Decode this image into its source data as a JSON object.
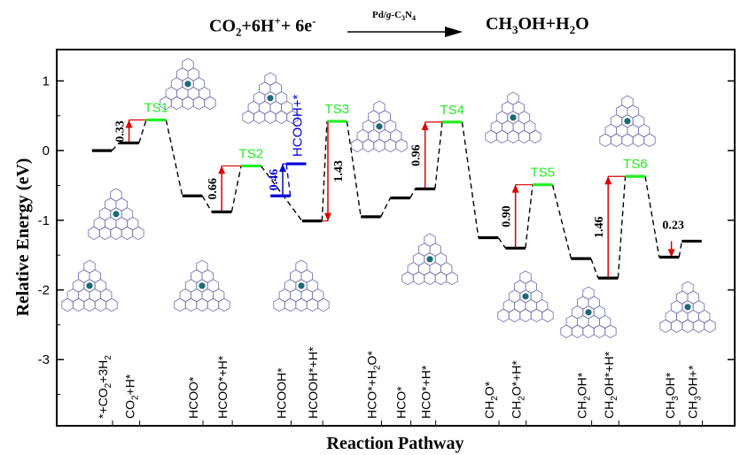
{
  "reaction": {
    "left": "CO2+6H⁺+ 6e⁻",
    "left_parts": [
      "CO",
      "2",
      "+6H",
      "+",
      "+ 6e",
      "-"
    ],
    "catalyst_parts": [
      "Pd/",
      "g",
      "-C",
      "3",
      "N",
      "4"
    ],
    "right_parts": [
      "CH",
      "3",
      "OH+H",
      "2",
      "O"
    ]
  },
  "chart_data": {
    "type": "line",
    "chart_kind": "energy profile diagram",
    "xlabel": "Reaction Pathway",
    "ylabel": "Relative Energy (eV)",
    "ylim": [
      -3.95,
      1.45
    ],
    "yticks": [
      -3,
      -2,
      -1,
      0,
      1
    ],
    "ytick_labels": [
      "-3",
      "-2",
      "-1",
      "0",
      "1"
    ],
    "grid": false,
    "colors": {
      "level": "#000000",
      "ts": "#22ee22",
      "barrier": "#dd0000",
      "alt": "#0000dd",
      "dash": "#000000",
      "structure": "#7a7ab8"
    },
    "categories": [
      {
        "sub_parts": [
          "*+CO",
          "2",
          "+3H",
          "2"
        ]
      },
      {
        "sub_parts": [
          "CO",
          "2",
          "+H*"
        ]
      },
      {
        "sub_parts": [
          "HCOO*"
        ]
      },
      {
        "sub_parts": [
          "HCOO*+H*"
        ]
      },
      {
        "sub_parts": [
          "HCOOH*"
        ]
      },
      {
        "sub_parts": [
          "HCOOH*+H*"
        ]
      },
      {
        "sub_parts": [
          "HCO*+H",
          "2",
          "O*"
        ]
      },
      {
        "sub_parts": [
          "HCO*"
        ]
      },
      {
        "sub_parts": [
          "HCO*+H*"
        ]
      },
      {
        "sub_parts": [
          "CH",
          "2",
          "O*"
        ]
      },
      {
        "sub_parts": [
          "CH",
          "2",
          "O*+H*"
        ]
      },
      {
        "sub_parts": [
          "CH",
          "2",
          "OH*"
        ]
      },
      {
        "sub_parts": [
          "CH",
          "2",
          "OH*+H*"
        ]
      },
      {
        "sub_parts": [
          "CH",
          "3",
          "OH*"
        ]
      },
      {
        "sub_parts": [
          "CH",
          "3",
          "OH+*"
        ]
      }
    ],
    "series": [
      {
        "name": "main pathway",
        "levels": [
          {
            "id": "L0",
            "x": 1.0,
            "energy": 0.0,
            "kind": "intermediate"
          },
          {
            "id": "L1",
            "x": 1.6,
            "energy": 0.11,
            "kind": "intermediate"
          },
          {
            "id": "TS1",
            "x": 2.2,
            "energy": 0.44,
            "kind": "ts",
            "label": "TS1"
          },
          {
            "id": "L2",
            "x": 3.0,
            "energy": -0.65,
            "kind": "intermediate"
          },
          {
            "id": "L3",
            "x": 3.65,
            "energy": -0.88,
            "kind": "intermediate"
          },
          {
            "id": "TS2",
            "x": 4.3,
            "energy": -0.22,
            "kind": "ts",
            "label": "TS2"
          },
          {
            "id": "L5",
            "x": 5.65,
            "energy": -1.01,
            "kind": "intermediate"
          },
          {
            "id": "TS3",
            "x": 6.2,
            "energy": 0.42,
            "kind": "ts",
            "label": "TS3"
          },
          {
            "id": "L6",
            "x": 6.95,
            "energy": -0.95,
            "kind": "intermediate"
          },
          {
            "id": "L7",
            "x": 7.6,
            "energy": -0.68,
            "kind": "intermediate"
          },
          {
            "id": "L8",
            "x": 8.15,
            "energy": -0.55,
            "kind": "intermediate"
          },
          {
            "id": "TS4",
            "x": 8.75,
            "energy": 0.41,
            "kind": "ts",
            "label": "TS4"
          },
          {
            "id": "L9",
            "x": 9.55,
            "energy": -1.25,
            "kind": "intermediate"
          },
          {
            "id": "L10",
            "x": 10.15,
            "energy": -1.4,
            "kind": "intermediate"
          },
          {
            "id": "TS5",
            "x": 10.75,
            "energy": -0.49,
            "kind": "ts",
            "label": "TS5"
          },
          {
            "id": "L11",
            "x": 11.6,
            "energy": -1.55,
            "kind": "intermediate"
          },
          {
            "id": "L12",
            "x": 12.2,
            "energy": -1.83,
            "kind": "intermediate"
          },
          {
            "id": "TS6",
            "x": 12.8,
            "energy": -0.37,
            "kind": "ts",
            "label": "TS6"
          },
          {
            "id": "L13",
            "x": 13.55,
            "energy": -1.53,
            "kind": "intermediate"
          },
          {
            "id": "L14",
            "x": 14.05,
            "energy": -1.3,
            "kind": "intermediate"
          }
        ],
        "connections": [
          [
            "L0",
            "L1"
          ],
          [
            "L1",
            "TS1"
          ],
          [
            "TS1",
            "L2"
          ],
          [
            "L2",
            "L3"
          ],
          [
            "L3",
            "TS2"
          ],
          [
            "TS2",
            "L5"
          ],
          [
            "L5",
            "TS3"
          ],
          [
            "TS3",
            "L6"
          ],
          [
            "L6",
            "L7"
          ],
          [
            "L7",
            "L8"
          ],
          [
            "L8",
            "TS4"
          ],
          [
            "TS4",
            "L9"
          ],
          [
            "L9",
            "L10"
          ],
          [
            "L10",
            "TS5"
          ],
          [
            "TS5",
            "L11"
          ],
          [
            "L11",
            "L12"
          ],
          [
            "L12",
            "TS6"
          ],
          [
            "TS6",
            "L13"
          ],
          [
            "L13",
            "L14"
          ]
        ],
        "barriers": [
          {
            "from": "L1",
            "to": "TS1",
            "x": 1.6,
            "value": "0.33",
            "label_pos": "left",
            "dir": "up"
          },
          {
            "from": "L3",
            "to": "TS2",
            "x": 3.65,
            "value": "0.66",
            "label_pos": "left",
            "dir": "up"
          },
          {
            "from": "TS3",
            "to": "L5",
            "x": 6.0,
            "value": "1.43",
            "label_pos": "right",
            "dir": "down"
          },
          {
            "from": "L8",
            "to": "TS4",
            "x": 8.15,
            "value": "0.96",
            "label_pos": "left",
            "dir": "up"
          },
          {
            "from": "L10",
            "to": "TS5",
            "x": 10.15,
            "value": "0.90",
            "label_pos": "left",
            "dir": "up"
          },
          {
            "from": "L12",
            "to": "TS6",
            "x": 12.2,
            "value": "1.46",
            "label_pos": "left",
            "dir": "up"
          },
          {
            "from": "L14",
            "to": "L13",
            "x": 13.6,
            "value": "0.23",
            "label_pos": "above",
            "dir": "down"
          }
        ]
      },
      {
        "name": "HCOOH+*",
        "levels": [
          {
            "id": "L4",
            "x": 4.95,
            "energy": -0.65,
            "kind": "intermediate"
          },
          {
            "id": "TSb",
            "x": 5.3,
            "energy": -0.19,
            "kind": "ts"
          }
        ],
        "connections": [
          [
            "L4",
            "TSb"
          ]
        ],
        "barriers": [
          {
            "from": "L4",
            "to": "TSb",
            "x": 5.0,
            "value": "0.46",
            "label_pos": "left",
            "dir": "up"
          }
        ]
      }
    ]
  }
}
